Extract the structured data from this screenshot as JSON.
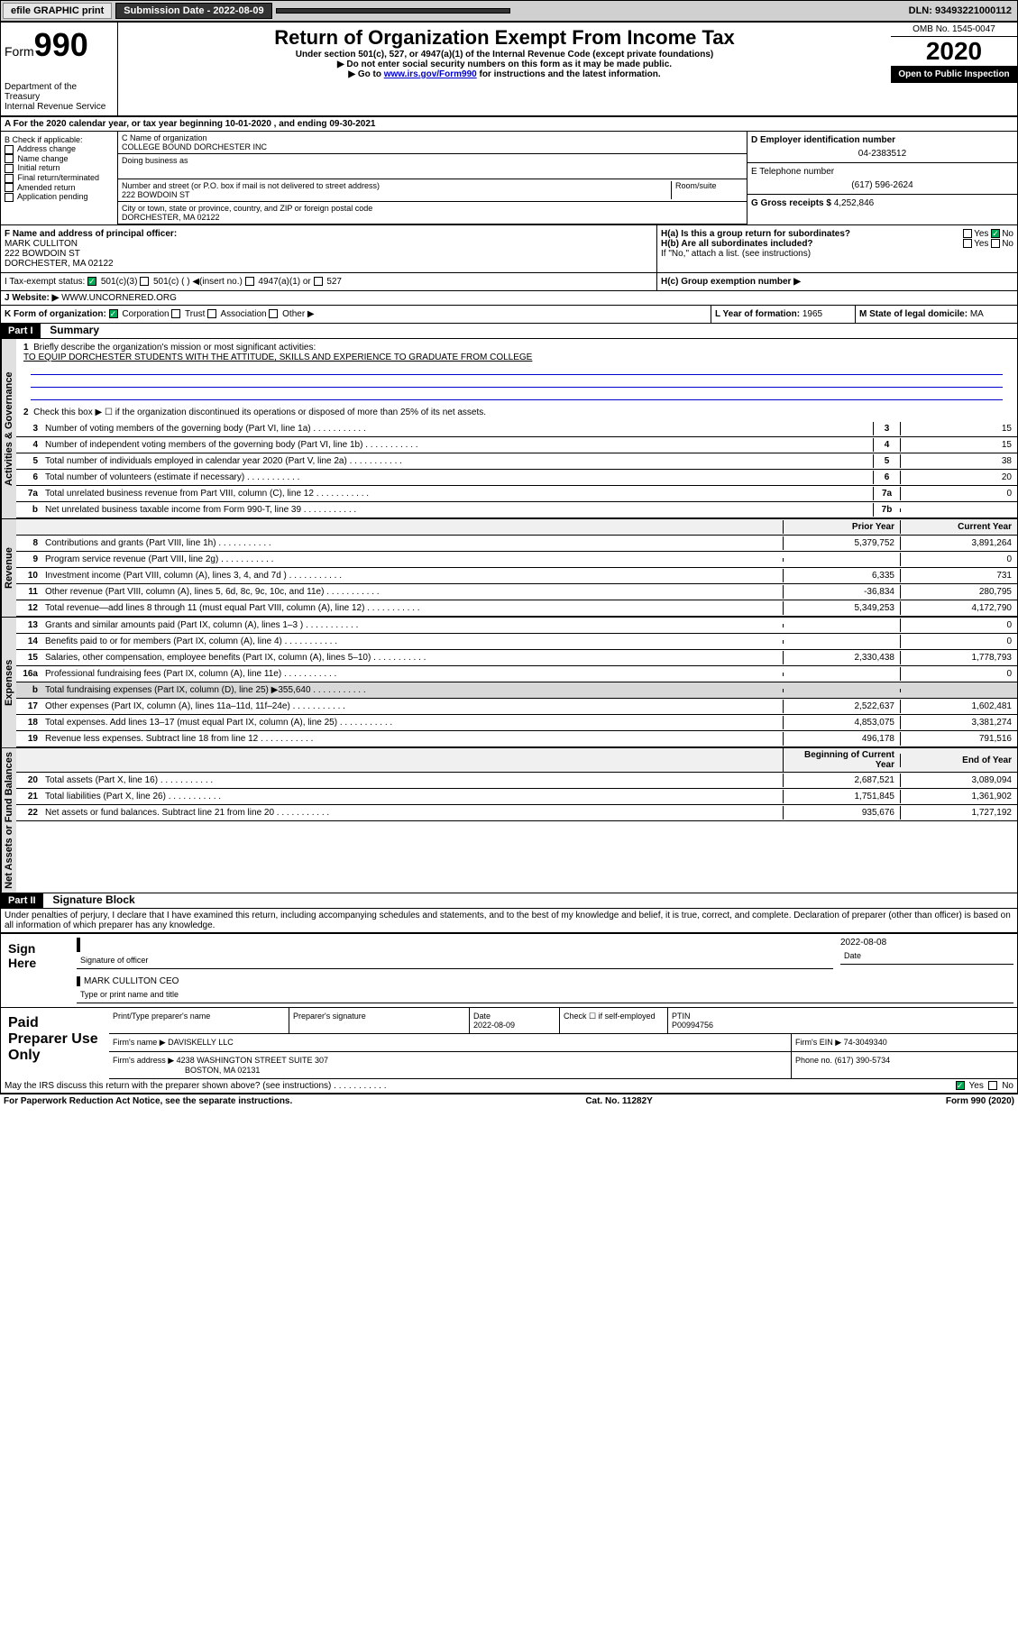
{
  "top": {
    "efile": "efile GRAPHIC print",
    "subdate_lbl": "Submission Date - 2022-08-09",
    "dln": "DLN: 93493221000112"
  },
  "hdr": {
    "form": "Form",
    "num": "990",
    "dept": "Department of the Treasury\nInternal Revenue Service",
    "title": "Return of Organization Exempt From Income Tax",
    "sub1": "Under section 501(c), 527, or 4947(a)(1) of the Internal Revenue Code (except private foundations)",
    "sub2": "▶ Do not enter social security numbers on this form as it may be made public.",
    "sub3a": "▶ Go to ",
    "sub3link": "www.irs.gov/Form990",
    "sub3b": " for instructions and the latest information.",
    "omb": "OMB No. 1545-0047",
    "year": "2020",
    "open": "Open to Public Inspection"
  },
  "a": {
    "text": "A For the 2020 calendar year, or tax year beginning 10-01-2020   , and ending 09-30-2021"
  },
  "b": {
    "hdr": "B Check if applicable:",
    "opts": [
      "Address change",
      "Name change",
      "Initial return",
      "Final return/terminated",
      "Amended return",
      "Application pending"
    ]
  },
  "c": {
    "lbl": "C Name of organization",
    "name": "COLLEGE BOUND DORCHESTER INC",
    "dba": "Doing business as",
    "addr_lbl": "Number and street (or P.O. box if mail is not delivered to street address)",
    "room": "Room/suite",
    "addr": "222 BOWDOIN ST",
    "city_lbl": "City or town, state or province, country, and ZIP or foreign postal code",
    "city": "DORCHESTER, MA  02122"
  },
  "d": {
    "lbl": "D Employer identification number",
    "val": "04-2383512"
  },
  "e": {
    "lbl": "E Telephone number",
    "val": "(617) 596-2624"
  },
  "g": {
    "lbl": "G Gross receipts $",
    "val": "4,252,846"
  },
  "f": {
    "lbl": "F  Name and address of principal officer:",
    "name": "MARK CULLITON",
    "addr": "222 BOWDOIN ST",
    "city": "DORCHESTER, MA  02122"
  },
  "h": {
    "a": "H(a)  Is this a group return for subordinates?",
    "b": "H(b)  Are all subordinates included?",
    "note": "If \"No,\" attach a list. (see instructions)",
    "c": "H(c)  Group exemption number ▶",
    "yes": "Yes",
    "no": "No"
  },
  "i": {
    "lbl": "I  Tax-exempt status:",
    "c1": "501(c)(3)",
    "c2": "501(c) (  ) ◀(insert no.)",
    "c3": "4947(a)(1) or",
    "c4": "527"
  },
  "j": {
    "lbl": "J   Website: ▶",
    "val": "WWW.UNCORNERED.ORG"
  },
  "k": {
    "lbl": "K Form of organization:",
    "c1": "Corporation",
    "c2": "Trust",
    "c3": "Association",
    "c4": "Other ▶"
  },
  "l": {
    "lbl": "L Year of formation:",
    "val": "1965"
  },
  "m": {
    "lbl": "M State of legal domicile:",
    "val": "MA"
  },
  "part1": {
    "hdr": "Part I",
    "title": "Summary",
    "l1": "Briefly describe the organization's mission or most significant activities:",
    "mission": "TO EQUIP DORCHESTER STUDENTS WITH THE ATTITUDE, SKILLS AND EXPERIENCE TO GRADUATE FROM COLLEGE",
    "l2": "Check this box ▶ ☐  if the organization discontinued its operations or disposed of more than 25% of its net assets.",
    "prior": "Prior Year",
    "current": "Current Year",
    "beg": "Beginning of Current Year",
    "end": "End of Year"
  },
  "lines_ag": [
    {
      "n": "3",
      "t": "Number of voting members of the governing body (Part VI, line 1a)",
      "b": "3",
      "v": "15"
    },
    {
      "n": "4",
      "t": "Number of independent voting members of the governing body (Part VI, line 1b)",
      "b": "4",
      "v": "15"
    },
    {
      "n": "5",
      "t": "Total number of individuals employed in calendar year 2020 (Part V, line 2a)",
      "b": "5",
      "v": "38"
    },
    {
      "n": "6",
      "t": "Total number of volunteers (estimate if necessary)",
      "b": "6",
      "v": "20"
    },
    {
      "n": "7a",
      "t": "Total unrelated business revenue from Part VIII, column (C), line 12",
      "b": "7a",
      "v": "0"
    },
    {
      "n": "b",
      "t": "Net unrelated business taxable income from Form 990-T, line 39",
      "b": "7b",
      "v": ""
    }
  ],
  "lines_rev": [
    {
      "n": "8",
      "t": "Contributions and grants (Part VIII, line 1h)",
      "p": "5,379,752",
      "c": "3,891,264"
    },
    {
      "n": "9",
      "t": "Program service revenue (Part VIII, line 2g)",
      "p": "",
      "c": "0"
    },
    {
      "n": "10",
      "t": "Investment income (Part VIII, column (A), lines 3, 4, and 7d )",
      "p": "6,335",
      "c": "731"
    },
    {
      "n": "11",
      "t": "Other revenue (Part VIII, column (A), lines 5, 6d, 8c, 9c, 10c, and 11e)",
      "p": "-36,834",
      "c": "280,795"
    },
    {
      "n": "12",
      "t": "Total revenue—add lines 8 through 11 (must equal Part VIII, column (A), line 12)",
      "p": "5,349,253",
      "c": "4,172,790"
    }
  ],
  "lines_exp": [
    {
      "n": "13",
      "t": "Grants and similar amounts paid (Part IX, column (A), lines 1–3 )",
      "p": "",
      "c": "0"
    },
    {
      "n": "14",
      "t": "Benefits paid to or for members (Part IX, column (A), line 4)",
      "p": "",
      "c": "0"
    },
    {
      "n": "15",
      "t": "Salaries, other compensation, employee benefits (Part IX, column (A), lines 5–10)",
      "p": "2,330,438",
      "c": "1,778,793"
    },
    {
      "n": "16a",
      "t": "Professional fundraising fees (Part IX, column (A), line 11e)",
      "p": "",
      "c": "0"
    },
    {
      "n": "b",
      "t": "Total fundraising expenses (Part IX, column (D), line 25) ▶355,640",
      "p": "",
      "c": "",
      "shade": true
    },
    {
      "n": "17",
      "t": "Other expenses (Part IX, column (A), lines 11a–11d, 11f–24e)",
      "p": "2,522,637",
      "c": "1,602,481"
    },
    {
      "n": "18",
      "t": "Total expenses. Add lines 13–17 (must equal Part IX, column (A), line 25)",
      "p": "4,853,075",
      "c": "3,381,274"
    },
    {
      "n": "19",
      "t": "Revenue less expenses. Subtract line 18 from line 12",
      "p": "496,178",
      "c": "791,516"
    }
  ],
  "lines_na": [
    {
      "n": "20",
      "t": "Total assets (Part X, line 16)",
      "p": "2,687,521",
      "c": "3,089,094"
    },
    {
      "n": "21",
      "t": "Total liabilities (Part X, line 26)",
      "p": "1,751,845",
      "c": "1,361,902"
    },
    {
      "n": "22",
      "t": "Net assets or fund balances. Subtract line 21 from line 20",
      "p": "935,676",
      "c": "1,727,192"
    }
  ],
  "part2": {
    "hdr": "Part II",
    "title": "Signature Block",
    "decl": "Under penalties of perjury, I declare that I have examined this return, including accompanying schedules and statements, and to the best of my knowledge and belief, it is true, correct, and complete. Declaration of preparer (other than officer) is based on all information of which preparer has any knowledge."
  },
  "sign": {
    "here": "Sign Here",
    "sig_lbl": "Signature of officer",
    "date_lbl": "Date",
    "date": "2022-08-08",
    "name": "MARK CULLITON CEO",
    "name_lbl": "Type or print name and title"
  },
  "prep": {
    "hdr": "Paid Preparer Use Only",
    "c1": "Print/Type preparer's name",
    "c2": "Preparer's signature",
    "c3_lbl": "Date",
    "c3": "2022-08-09",
    "c4": "Check ☐ if self-employed",
    "c5_lbl": "PTIN",
    "c5": "P00994756",
    "firm_lbl": "Firm's name   ▶",
    "firm": "DAVISKELLY LLC",
    "ein_lbl": "Firm's EIN ▶",
    "ein": "74-3049340",
    "addr_lbl": "Firm's address ▶",
    "addr": "4238 WASHINGTON STREET SUITE 307",
    "addr2": "BOSTON, MA  02131",
    "ph_lbl": "Phone no.",
    "ph": "(617) 390-5734"
  },
  "bottom": {
    "q": "May the IRS discuss this return with the preparer shown above? (see instructions)",
    "yes": "Yes",
    "no": "No",
    "pra": "For Paperwork Reduction Act Notice, see the separate instructions.",
    "cat": "Cat. No. 11282Y",
    "form": "Form 990 (2020)"
  },
  "tabs": {
    "ag": "Activities & Governance",
    "rev": "Revenue",
    "exp": "Expenses",
    "na": "Net Assets or Fund Balances"
  }
}
